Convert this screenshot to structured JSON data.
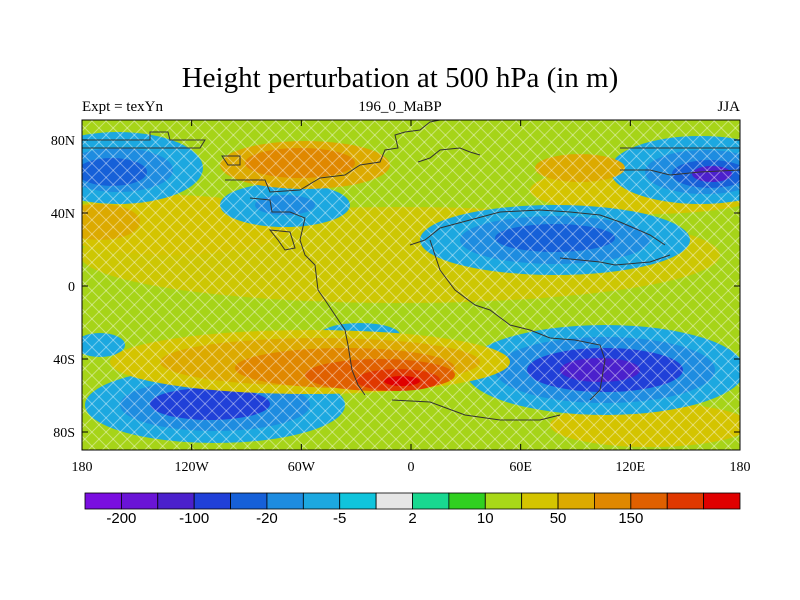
{
  "title": "Height perturbation at 500 hPa (in m)",
  "subtitle_left": "Expt = texYn",
  "subtitle_center": "196_0_MaBP",
  "subtitle_right": "JJA",
  "x_ticks": [
    "180",
    "120W",
    "60W",
    "0",
    "60E",
    "120E",
    "180"
  ],
  "y_ticks": [
    "80N",
    "40N",
    "0",
    "40S",
    "80S"
  ],
  "colorbar": {
    "colors": [
      "#7a0ee0",
      "#6a14d6",
      "#4b20cc",
      "#2040d8",
      "#1660d8",
      "#1e8ce0",
      "#1ca8e0",
      "#10c4dc",
      "#e6e6e6",
      "#18d890",
      "#30d020",
      "#a8d818",
      "#d4c400",
      "#dcaa00",
      "#e08800",
      "#e06000",
      "#e03800",
      "#e00000"
    ],
    "labels": [
      "-200",
      "-100",
      "-20",
      "-5",
      "2",
      "10",
      "50",
      "150"
    ]
  }
}
